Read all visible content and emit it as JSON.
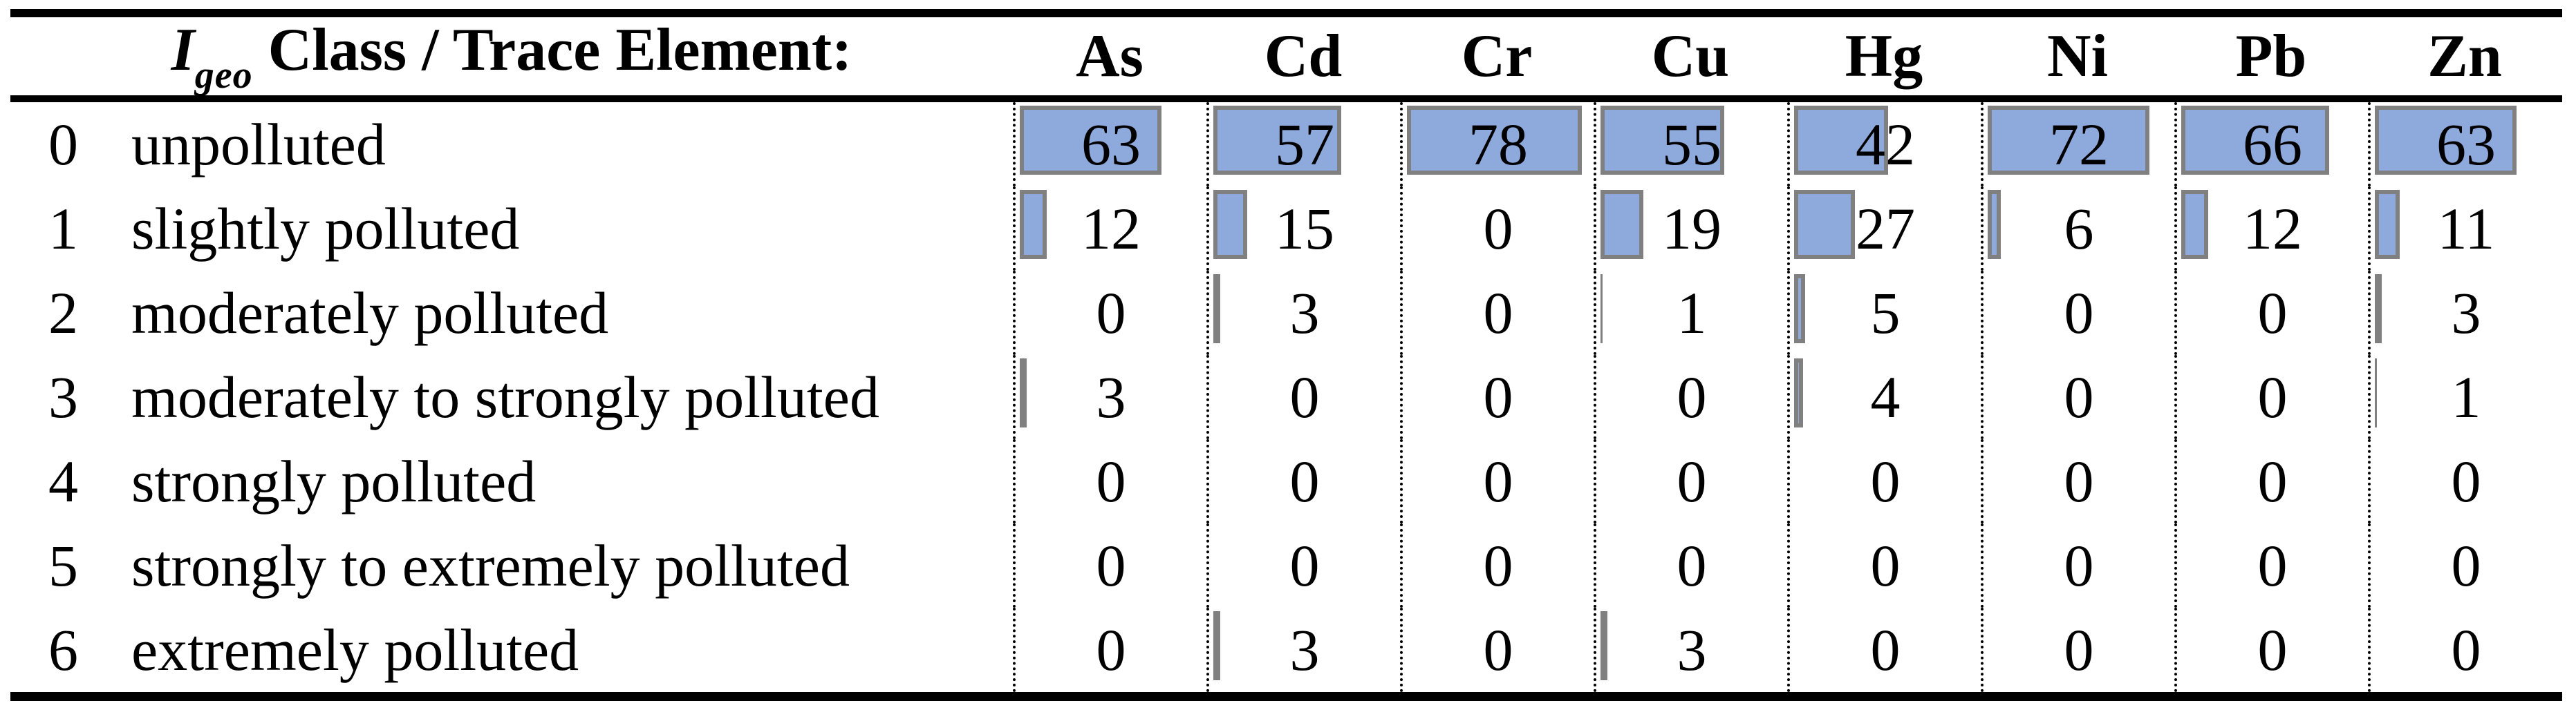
{
  "header": {
    "title_i": "I",
    "title_sub": "geo",
    "title_rest": "Class / Trace Element:"
  },
  "elements": [
    "As",
    "Cd",
    "Cr",
    "Cu",
    "Hg",
    "Ni",
    "Pb",
    "Zn"
  ],
  "rows": [
    {
      "class": "0",
      "label": "unpolluted",
      "values": [
        63,
        57,
        78,
        55,
        42,
        72,
        66,
        63
      ]
    },
    {
      "class": "1",
      "label": "slightly polluted",
      "values": [
        12,
        15,
        0,
        19,
        27,
        6,
        12,
        11
      ]
    },
    {
      "class": "2",
      "label": "moderately polluted",
      "values": [
        0,
        3,
        0,
        1,
        5,
        0,
        0,
        3
      ]
    },
    {
      "class": "3",
      "label": "moderately to strongly polluted",
      "values": [
        3,
        0,
        0,
        0,
        4,
        0,
        0,
        1
      ]
    },
    {
      "class": "4",
      "label": "strongly polluted",
      "values": [
        0,
        0,
        0,
        0,
        0,
        0,
        0,
        0
      ]
    },
    {
      "class": "5",
      "label": "strongly to extremely polluted",
      "values": [
        0,
        0,
        0,
        0,
        0,
        0,
        0,
        0
      ]
    },
    {
      "class": "6",
      "label": "extremely polluted",
      "values": [
        0,
        3,
        0,
        3,
        0,
        0,
        0,
        0
      ]
    }
  ],
  "colors": {
    "bar_fill": "#8EA9DB",
    "bar_border": "#808080",
    "text": "#000000"
  },
  "layout": {
    "bar_scale_max": 85
  },
  "chart_data": {
    "type": "table",
    "title": "Igeo Class / Trace Element: frequency table with in-cell data bars",
    "columns": [
      "As",
      "Cd",
      "Cr",
      "Cu",
      "Hg",
      "Ni",
      "Pb",
      "Zn"
    ],
    "row_categories": [
      "0 unpolluted",
      "1 slightly polluted",
      "2 moderately polluted",
      "3 moderately to strongly polluted",
      "4 strongly polluted",
      "5 strongly to extremely polluted",
      "6 extremely polluted"
    ],
    "series": [
      {
        "name": "As",
        "values": [
          63,
          12,
          0,
          3,
          0,
          0,
          0
        ]
      },
      {
        "name": "Cd",
        "values": [
          57,
          15,
          3,
          0,
          0,
          0,
          3
        ]
      },
      {
        "name": "Cr",
        "values": [
          78,
          0,
          0,
          0,
          0,
          0,
          0
        ]
      },
      {
        "name": "Cu",
        "values": [
          55,
          19,
          1,
          0,
          0,
          0,
          3
        ]
      },
      {
        "name": "Hg",
        "values": [
          42,
          27,
          5,
          4,
          0,
          0,
          0
        ]
      },
      {
        "name": "Ni",
        "values": [
          72,
          6,
          0,
          0,
          0,
          0,
          0
        ]
      },
      {
        "name": "Pb",
        "values": [
          66,
          12,
          0,
          0,
          0,
          0,
          0
        ]
      },
      {
        "name": "Zn",
        "values": [
          63,
          11,
          3,
          1,
          0,
          0,
          0
        ]
      }
    ],
    "bar_axis_range": [
      0,
      85
    ],
    "legend_position": "none",
    "grid": "dotted column separators, horizontal rules top/header/bottom"
  }
}
